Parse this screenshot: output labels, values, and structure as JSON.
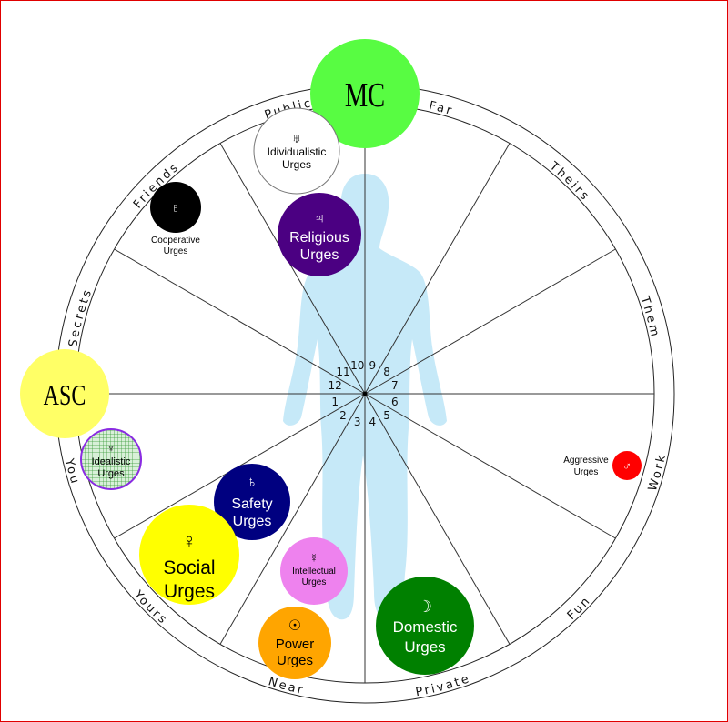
{
  "angles": {
    "mc": "MC",
    "asc": "ASC"
  },
  "ring_labels": [
    "Public",
    "Far",
    "Theirs",
    "Them",
    "Work",
    "Fun",
    "Private",
    "Near",
    "Yours",
    "You",
    "Secrets",
    "Friends"
  ],
  "house_numbers": [
    "1",
    "2",
    "3",
    "4",
    "5",
    "6",
    "7",
    "8",
    "9",
    "10",
    "11",
    "12"
  ],
  "planets": {
    "uranus": {
      "symbol": "♅",
      "line1": "Idividualistic",
      "line2": "Urges",
      "color": "#ffffff"
    },
    "pluto": {
      "symbol": "♇",
      "line1": "Cooperative",
      "line2": "Urges",
      "color": "#000000"
    },
    "jupiter": {
      "symbol": "♃",
      "line1": "Religious",
      "line2": "Urges",
      "color": "#4b0082"
    },
    "neptune": {
      "symbol": "♆",
      "line1": "Idealistic",
      "line2": "Urges",
      "color": "#7fd07f"
    },
    "saturn": {
      "symbol": "♄",
      "line1": "Safety",
      "line2": "Urges",
      "color": "#000080"
    },
    "venus": {
      "symbol": "♀",
      "line1": "Social",
      "line2": "Urges",
      "color": "#ffff00"
    },
    "mercury": {
      "symbol": "☿",
      "line1": "Intellectual",
      "line2": "Urges",
      "color": "#ee82ee"
    },
    "sun": {
      "symbol": "☉",
      "line1": "Power",
      "line2": "Urges",
      "color": "#ffa500"
    },
    "moon": {
      "symbol": "☽",
      "line1": "Domestic",
      "line2": "Urges",
      "color": "#008000"
    },
    "mars": {
      "symbol": "♂",
      "line1": "Aggressive",
      "line2": "Urges",
      "color": "#ff0000"
    }
  },
  "colors": {
    "mc": "#58fc42",
    "asc": "#ffff66",
    "figure": "#c6e9f8"
  }
}
